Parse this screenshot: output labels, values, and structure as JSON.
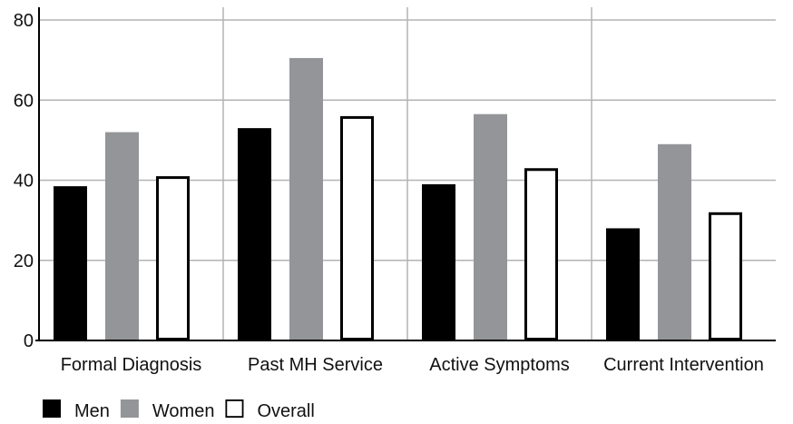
{
  "chart_data": {
    "type": "bar",
    "title": "",
    "xlabel": "",
    "ylabel": "",
    "ylim": [
      0,
      80
    ],
    "yticks": [
      0,
      20,
      40,
      60,
      80
    ],
    "grid": true,
    "legend_position": "bottom-left",
    "categories": [
      "Formal Diagnosis",
      "Past MH Service",
      "Active Symptoms",
      "Current Intervention"
    ],
    "series": [
      {
        "name": "Men",
        "values": [
          38.5,
          53,
          39,
          28
        ],
        "fill": "#000000",
        "stroke": "#000000"
      },
      {
        "name": "Women",
        "values": [
          52,
          70.5,
          56.5,
          49
        ],
        "fill": "#939598",
        "stroke": "#939598"
      },
      {
        "name": "Overall",
        "values": [
          41,
          56,
          43,
          32
        ],
        "fill": "#ffffff",
        "stroke": "#000000"
      }
    ]
  }
}
